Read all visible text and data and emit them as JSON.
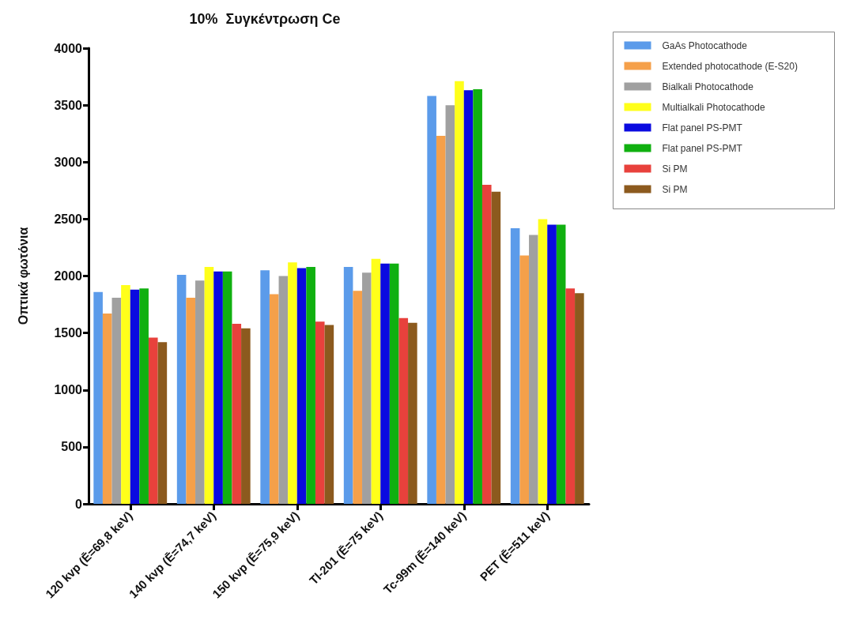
{
  "chart_data": {
    "type": "bar",
    "title": "10%  Συγκέντρωση Ce",
    "ylabel": "Οπτικά φωτόνια",
    "categories": [
      "120 kvp (Ē=69,8 keV)",
      "140 kvp (Ē=74,7 keV)",
      "150 kvp (Ē=75,9 keV)",
      "Tl-201 (Ē=75 keV)",
      "Tc-99m (Ē=140 keV)",
      "PET (Ē=511 keV)"
    ],
    "series": [
      {
        "name": "GaAs Photocathode",
        "color": "#5b9bea",
        "values": [
          1860,
          2010,
          2050,
          2080,
          3580,
          2420
        ]
      },
      {
        "name": "Extended photocathode (E-S20)",
        "color": "#f5a04a",
        "values": [
          1670,
          1810,
          1840,
          1870,
          3230,
          2180
        ]
      },
      {
        "name": "Bialkali Photocathode",
        "color": "#a0a0a0",
        "values": [
          1810,
          1960,
          2000,
          2030,
          3500,
          2360
        ]
      },
      {
        "name": "Multialkali Photocathode",
        "color": "#ffff1a",
        "values": [
          1920,
          2080,
          2120,
          2150,
          3710,
          2500
        ]
      },
      {
        "name": "Flat panel PS-PMT",
        "color": "#0a0ae0",
        "values": [
          1880,
          2040,
          2070,
          2110,
          3630,
          2450
        ]
      },
      {
        "name": "Flat panel PS-PMT",
        "color": "#10b010",
        "values": [
          1890,
          2040,
          2080,
          2110,
          3640,
          2450
        ]
      },
      {
        "name": "Si PM",
        "color": "#e8413c",
        "values": [
          1460,
          1580,
          1600,
          1630,
          2800,
          1890
        ]
      },
      {
        "name": "Si PM",
        "color": "#8c5a1e",
        "values": [
          1420,
          1540,
          1570,
          1590,
          2740,
          1850
        ]
      }
    ],
    "ylim": [
      0,
      4000
    ],
    "yticks": [
      0,
      500,
      1000,
      1500,
      2000,
      2500,
      3000,
      3500,
      4000
    ],
    "grid": false,
    "legend": "top right"
  }
}
